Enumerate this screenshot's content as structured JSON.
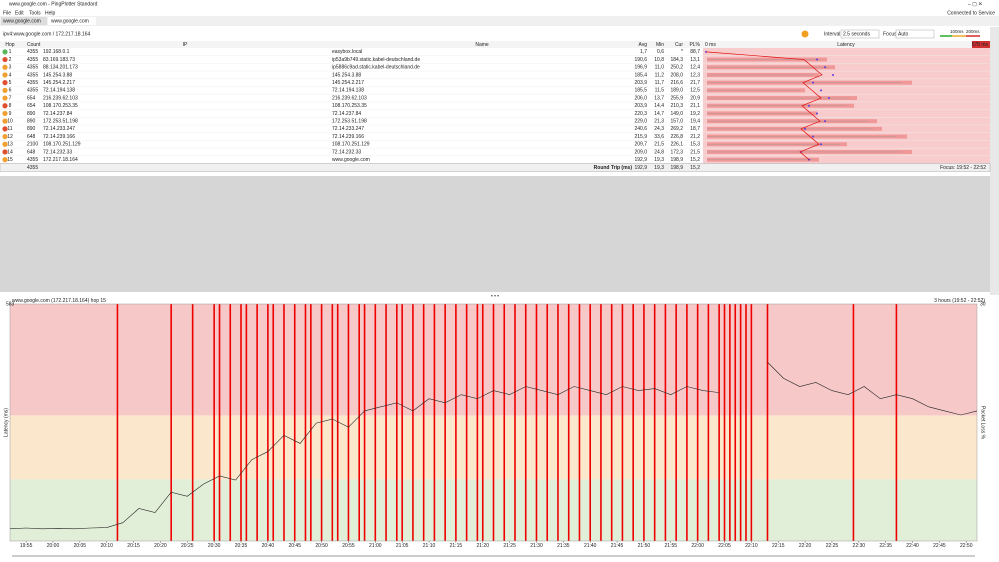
{
  "window": {
    "title": "www.google.com - PingPlotter Standard",
    "menu": [
      "File",
      "Edit",
      "Tools",
      "Help"
    ],
    "status": "Connected to Service"
  },
  "tabs": [
    "www.google.com",
    "www.google.com"
  ],
  "toolbar": {
    "target": "ipv4:www.google.com / 172.217.18.164",
    "interval_label": "Interval",
    "interval": "2.5 seconds",
    "focus_label": "Focus",
    "focus": "Auto",
    "threshold_low": "100ms",
    "threshold_high": "200ms"
  },
  "table": {
    "columns": [
      "Hop",
      "Count",
      "IP",
      "Name",
      "Avg",
      "Min",
      "Cur",
      "PL%",
      "0 ms",
      "Latency",
      "578 ms"
    ],
    "rows": [
      [
        "1",
        "4355",
        "192.168.0.1",
        "easybox.local",
        "1,7",
        "0,6",
        "*",
        "88,7"
      ],
      [
        "2",
        "4355",
        "83.169.183.73",
        "ip53a9b749.static.kabel-deutschland.de",
        "190,6",
        "10,8",
        "184,3",
        "13,1"
      ],
      [
        "3",
        "4355",
        "88.134.201.173",
        "ip5886c9ad.static.kabel-deutschland.de",
        "196,9",
        "11,0",
        "250,2",
        "12,4"
      ],
      [
        "4",
        "4355",
        "145.254.3.88",
        "145.254.3.88",
        "185,4",
        "11,2",
        "208,0",
        "12,3"
      ],
      [
        "5",
        "4355",
        "145.254.2.217",
        "145.254.2.217",
        "203,9",
        "11,7",
        "216,6",
        "21,7"
      ],
      [
        "6",
        "4355",
        "72.14.194.138",
        "72.14.194.138",
        "185,5",
        "11,5",
        "189,0",
        "12,5"
      ],
      [
        "7",
        "654",
        "216.239.62.103",
        "216.239.62.103",
        "206,0",
        "13,7",
        "255,9",
        "20,9"
      ],
      [
        "8",
        "654",
        "108.170.253.35",
        "108.170.253.35",
        "203,9",
        "14,4",
        "210,3",
        "21,1"
      ],
      [
        "9",
        "890",
        "72.14.237.84",
        "72.14.237.84",
        "220,3",
        "14,7",
        "149,0",
        "19,2"
      ],
      [
        "10",
        "890",
        "172.253.51.198",
        "172.253.51.198",
        "229,0",
        "21,3",
        "157,0",
        "19,4"
      ],
      [
        "11",
        "890",
        "72.14.233.247",
        "72.14.233.247",
        "240,6",
        "24,3",
        "269,2",
        "18,7"
      ],
      [
        "12",
        "648",
        "72.14.239.166",
        "72.14.239.166",
        "215,9",
        "33,6",
        "226,8",
        "21,2"
      ],
      [
        "13",
        "2100",
        "108.170.251.129",
        "108.170.251.129",
        "209,7",
        "21,5",
        "226,1",
        "15,3"
      ],
      [
        "14",
        "648",
        "72.14.232.33",
        "72.14.232.33",
        "209,0",
        "24,8",
        "172,3",
        "21,5"
      ],
      [
        "15",
        "4355",
        "172.217.18.164",
        "www.google.com",
        "192,9",
        "19,3",
        "198,9",
        "15,2"
      ]
    ],
    "footer": [
      "4355",
      "Round Trip (ms)",
      "192,9",
      "19,3",
      "198,9",
      "15,2",
      "Focus: 19:52 - 22:52"
    ]
  },
  "chart_data": {
    "type": "line",
    "title": "www.google.com (172.217.18.164) hop 15",
    "subtitle": "3 hours (19:52 - 22:52)",
    "y_label": "Latency (ms)",
    "y2_label": "Packet Loss %",
    "ymax_label": "583",
    "y2max_label": "30",
    "ylim": [
      0,
      583
    ],
    "xlim": [
      "19:52",
      "22:52"
    ],
    "xticks": [
      "19:55",
      "20:00",
      "20:05",
      "20:10",
      "20:15",
      "20:20",
      "20:25",
      "20:30",
      "20:35",
      "20:40",
      "20:45",
      "20:50",
      "20:55",
      "21:00",
      "21:05",
      "21:10",
      "21:15",
      "21:20",
      "21:25",
      "21:30",
      "21:35",
      "21:40",
      "21:45",
      "21:50",
      "21:55",
      "22:00",
      "22:05",
      "22:10",
      "22:15",
      "22:20",
      "22:25",
      "22:30",
      "22:35",
      "22:40",
      "22:45",
      "22:50"
    ],
    "x": [
      "19:52",
      "19:55",
      "19:58",
      "20:01",
      "20:04",
      "20:07",
      "20:10",
      "20:13",
      "20:16",
      "20:19",
      "20:22",
      "20:25",
      "20:28",
      "20:31",
      "20:34",
      "20:37",
      "20:40",
      "20:43",
      "20:46",
      "20:49",
      "20:52",
      "20:55",
      "20:58",
      "21:01",
      "21:04",
      "21:07",
      "21:10",
      "21:13",
      "21:16",
      "21:19",
      "21:22",
      "21:25",
      "21:28",
      "21:31",
      "21:34",
      "21:37",
      "21:40",
      "21:43",
      "21:46",
      "21:49",
      "21:52",
      "21:55",
      "21:58",
      "22:01",
      "22:04",
      "22:07",
      "22:10",
      "22:13",
      "22:16",
      "22:19",
      "22:22",
      "22:25",
      "22:28",
      "22:31",
      "22:34",
      "22:37",
      "22:40",
      "22:43",
      "22:46",
      "22:49",
      "22:52"
    ],
    "series": [
      {
        "name": "Latency",
        "color": "#222222",
        "values": [
          30,
          32,
          30,
          31,
          30,
          32,
          33,
          45,
          80,
          70,
          120,
          110,
          140,
          160,
          150,
          200,
          220,
          260,
          240,
          290,
          300,
          280,
          320,
          330,
          340,
          320,
          350,
          340,
          360,
          350,
          370,
          360,
          380,
          370,
          360,
          380,
          370,
          360,
          380,
          370,
          375,
          360,
          380,
          370,
          365,
          null,
          null,
          440,
          400,
          380,
          390,
          370,
          360,
          380,
          350,
          360,
          350,
          330,
          320,
          310,
          320
        ]
      }
    ],
    "loss_color": "#ee0000",
    "packet_loss_x": [
      "20:12",
      "20:22",
      "20:26",
      "20:30",
      "20:31",
      "20:33",
      "20:35",
      "20:36",
      "20:38",
      "20:40",
      "20:41",
      "20:43",
      "20:45",
      "20:47",
      "20:48",
      "20:50",
      "20:52",
      "20:53",
      "20:55",
      "20:57",
      "20:58",
      "21:00",
      "21:02",
      "21:04",
      "21:05",
      "21:07",
      "21:09",
      "21:11",
      "21:13",
      "21:15",
      "21:17",
      "21:19",
      "21:20",
      "21:22",
      "21:24",
      "21:26",
      "21:28",
      "21:30",
      "21:32",
      "21:34",
      "21:36",
      "21:38",
      "21:40",
      "21:42",
      "21:44",
      "21:46",
      "21:48",
      "21:50",
      "21:52",
      "21:54",
      "21:56",
      "21:58",
      "22:00",
      "22:02",
      "22:04",
      "22:05",
      "22:06",
      "22:07",
      "22:08",
      "22:09",
      "22:10",
      "22:13",
      "22:29",
      "22:37"
    ]
  }
}
